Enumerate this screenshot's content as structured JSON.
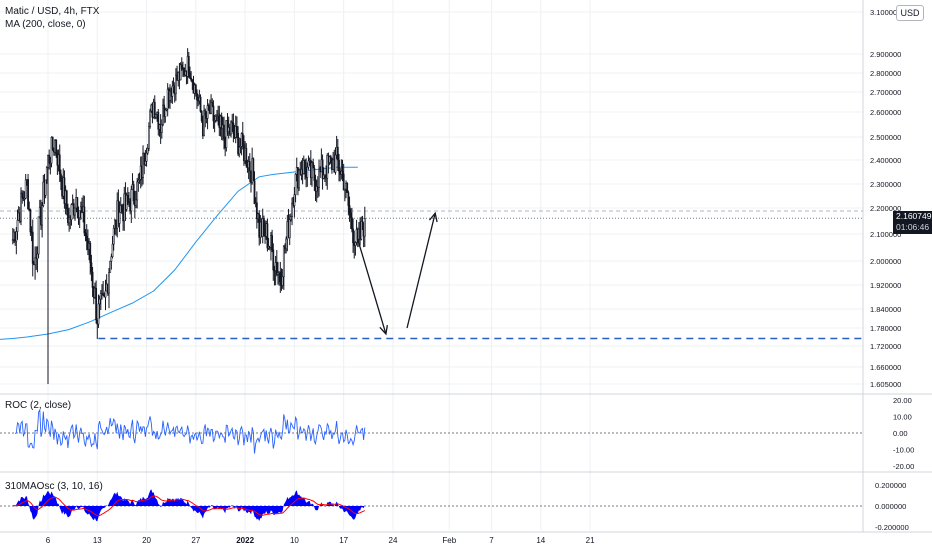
{
  "header": {
    "title": "Matic / USD, 4h, FTX",
    "ma_legend": "MA (200, close, 0)",
    "currency": "USD"
  },
  "last_price": {
    "value": "2.160749",
    "countdown": "01:06:46"
  },
  "roc": {
    "label": "ROC (2, close)",
    "ticks": [
      "20.00",
      "10.00",
      "0.00",
      "-10.00",
      "-20.00"
    ]
  },
  "osc": {
    "label": "310MAOsc (3, 10, 16)",
    "ticks": [
      "0.200000",
      "0.000000",
      "-0.200000"
    ]
  },
  "x_axis": {
    "labels": [
      "6",
      "13",
      "20",
      "27",
      "2022",
      "10",
      "17",
      "24",
      "Feb",
      "7",
      "14",
      "21"
    ]
  },
  "colors": {
    "up": "#131722",
    "down": "#131722",
    "ma": "#2196f3",
    "roc": "#2962ff",
    "osc_fill": "#0000ff",
    "osc_signal": "#ff0000",
    "support": "#2a5fbf",
    "grid": "#eef0f3",
    "axis_text": "#131722"
  },
  "chart_data": [
    {
      "type": "candlestick",
      "title": "Matic / USD, 4h, FTX",
      "y_axis_ticks": [
        3.1,
        2.9,
        2.8,
        2.7,
        2.6,
        2.5,
        2.4,
        2.3,
        2.2,
        2.1,
        2.0,
        1.92,
        1.84,
        1.78,
        1.72,
        1.66,
        1.605
      ],
      "ylim": [
        1.58,
        3.12
      ],
      "close_path": [
        [
          "Dec 1",
          2.08
        ],
        [
          "Dec 2",
          2.2
        ],
        [
          "Dec 3",
          2.3
        ],
        [
          "Dec 4",
          1.98
        ],
        [
          "Dec 5",
          2.18
        ],
        [
          "Dec 6",
          2.4
        ],
        [
          "Dec 7",
          2.48
        ],
        [
          "Dec 8",
          2.3
        ],
        [
          "Dec 9",
          2.15
        ],
        [
          "Dec 10",
          2.25
        ],
        [
          "Dec 11",
          2.15
        ],
        [
          "Dec 12",
          2.0
        ],
        [
          "Dec 13",
          1.82
        ],
        [
          "Dec 14",
          1.85
        ],
        [
          "Dec 15",
          2.05
        ],
        [
          "Dec 16",
          2.2
        ],
        [
          "Dec 17",
          2.2
        ],
        [
          "Dec 18",
          2.25
        ],
        [
          "Dec 19",
          2.3
        ],
        [
          "Dec 20",
          2.48
        ],
        [
          "Dec 21",
          2.65
        ],
        [
          "Dec 22",
          2.55
        ],
        [
          "Dec 23",
          2.7
        ],
        [
          "Dec 24",
          2.75
        ],
        [
          "Dec 25",
          2.8
        ],
        [
          "Dec 26",
          2.85
        ],
        [
          "Dec 27",
          2.7
        ],
        [
          "Dec 28",
          2.55
        ],
        [
          "Dec 29",
          2.6
        ],
        [
          "Dec 30",
          2.55
        ],
        [
          "Dec 31",
          2.5
        ],
        [
          "Jan 1",
          2.53
        ],
        [
          "Jan 2",
          2.48
        ],
        [
          "Jan 3",
          2.43
        ],
        [
          "Jan 4",
          2.35
        ],
        [
          "Jan 5",
          2.12
        ],
        [
          "Jan 6",
          2.1
        ],
        [
          "Jan 7",
          2.02
        ],
        [
          "Jan 8",
          1.95
        ],
        [
          "Jan 9",
          2.1
        ],
        [
          "Jan 10",
          2.3
        ],
        [
          "Jan 11",
          2.38
        ],
        [
          "Jan 12",
          2.35
        ],
        [
          "Jan 13",
          2.32
        ],
        [
          "Jan 14",
          2.35
        ],
        [
          "Jan 15",
          2.38
        ],
        [
          "Jan 16",
          2.4
        ],
        [
          "Jan 17",
          2.32
        ],
        [
          "Jan 18",
          2.15
        ],
        [
          "Jan 19",
          2.05
        ],
        [
          "Jan 20",
          2.16
        ]
      ],
      "extremes": {
        "low": 1.605,
        "high": 2.91
      },
      "ma_200": [
        [
          "Dec 1",
          1.745
        ],
        [
          "Dec 3",
          1.75
        ],
        [
          "Dec 6",
          1.76
        ],
        [
          "Dec 9",
          1.775
        ],
        [
          "Dec 12",
          1.8
        ],
        [
          "Dec 15",
          1.83
        ],
        [
          "Dec 18",
          1.86
        ],
        [
          "Dec 21",
          1.9
        ],
        [
          "Dec 24",
          1.97
        ],
        [
          "Dec 27",
          2.07
        ],
        [
          "Dec 30",
          2.17
        ],
        [
          "Jan 2",
          2.27
        ],
        [
          "Jan 5",
          2.33
        ],
        [
          "Jan 7",
          2.34
        ],
        [
          "Jan 10",
          2.35
        ],
        [
          "Jan 13",
          2.36
        ],
        [
          "Jan 16",
          2.37
        ],
        [
          "Jan 19",
          2.37
        ]
      ],
      "last_price": 2.160749,
      "support_level": 1.745,
      "projection": [
        [
          "Jan 19",
          2.08
        ],
        [
          "Jan 23",
          1.76
        ],
        [
          "Jan 26",
          1.78
        ],
        [
          "Jan 30",
          2.18
        ]
      ]
    },
    {
      "type": "line",
      "title": "ROC (2, close)",
      "ylim": [
        -20,
        20
      ],
      "y_axis_ticks": [
        20,
        10,
        0,
        -10,
        -20
      ]
    },
    {
      "type": "area",
      "title": "310MAOsc (3, 10, 16)",
      "ylim": [
        -0.25,
        0.25
      ],
      "y_axis_ticks": [
        0.2,
        0.0,
        -0.2
      ]
    }
  ]
}
